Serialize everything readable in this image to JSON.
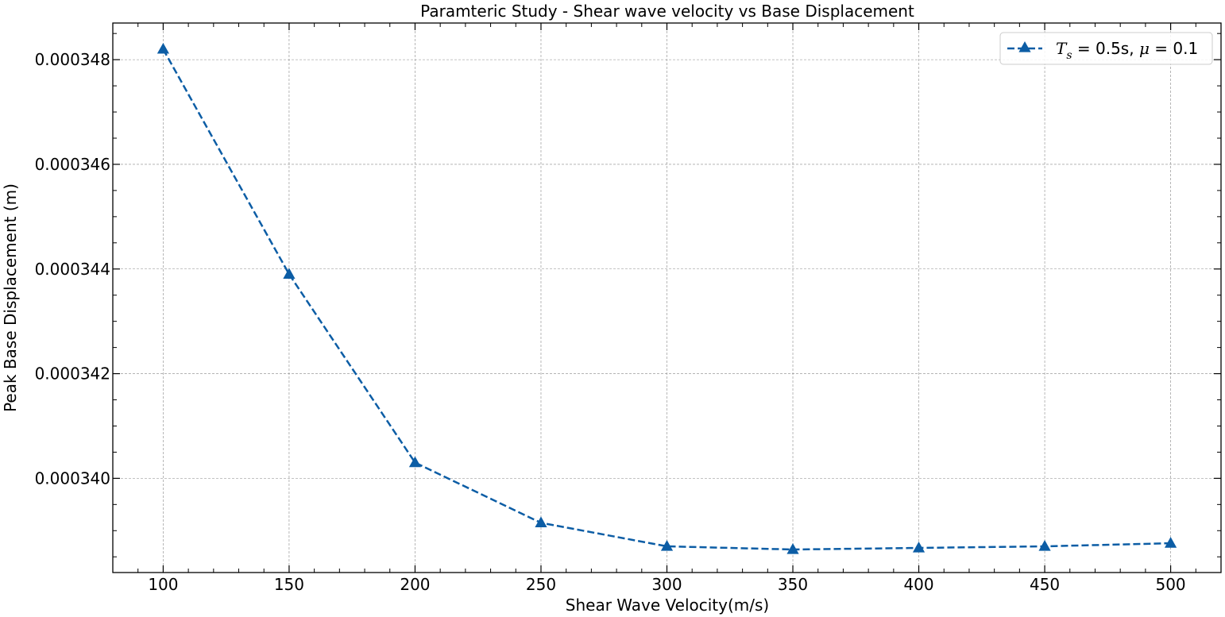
{
  "chart_data": {
    "type": "line",
    "title": "Paramteric Study - Shear wave velocity vs Base Displacement",
    "xlabel": "Shear Wave Velocity(m/s)",
    "ylabel": "Peak Base Displacement (m)",
    "xlim": [
      80,
      520
    ],
    "ylim": [
      0.0003382,
      0.0003487
    ],
    "x_ticks": [
      100,
      150,
      200,
      250,
      300,
      350,
      400,
      450,
      500
    ],
    "x_tick_labels": [
      "100",
      "150",
      "200",
      "250",
      "300",
      "350",
      "400",
      "450",
      "500"
    ],
    "y_ticks": [
      0.00034,
      0.000342,
      0.000344,
      0.000346,
      0.000348
    ],
    "y_tick_labels": [
      "0.000340",
      "0.000342",
      "0.000344",
      "0.000346",
      "0.000348"
    ],
    "grid": true,
    "legend_position": "top-right",
    "series": [
      {
        "name_parts": {
          "t": "T",
          "sub": "s",
          "eq1": " = 0.5s, ",
          "mu": "μ",
          "eq2": " = 0.1"
        },
        "color": "#0c5da5",
        "linestyle": "dashed",
        "marker": "triangle",
        "x": [
          100,
          150,
          200,
          250,
          300,
          350,
          400,
          450,
          500
        ],
        "y": [
          0.0003482,
          0.0003439,
          0.0003403,
          0.00033915,
          0.0003387,
          0.00033864,
          0.00033867,
          0.0003387,
          0.00033876
        ]
      }
    ]
  }
}
